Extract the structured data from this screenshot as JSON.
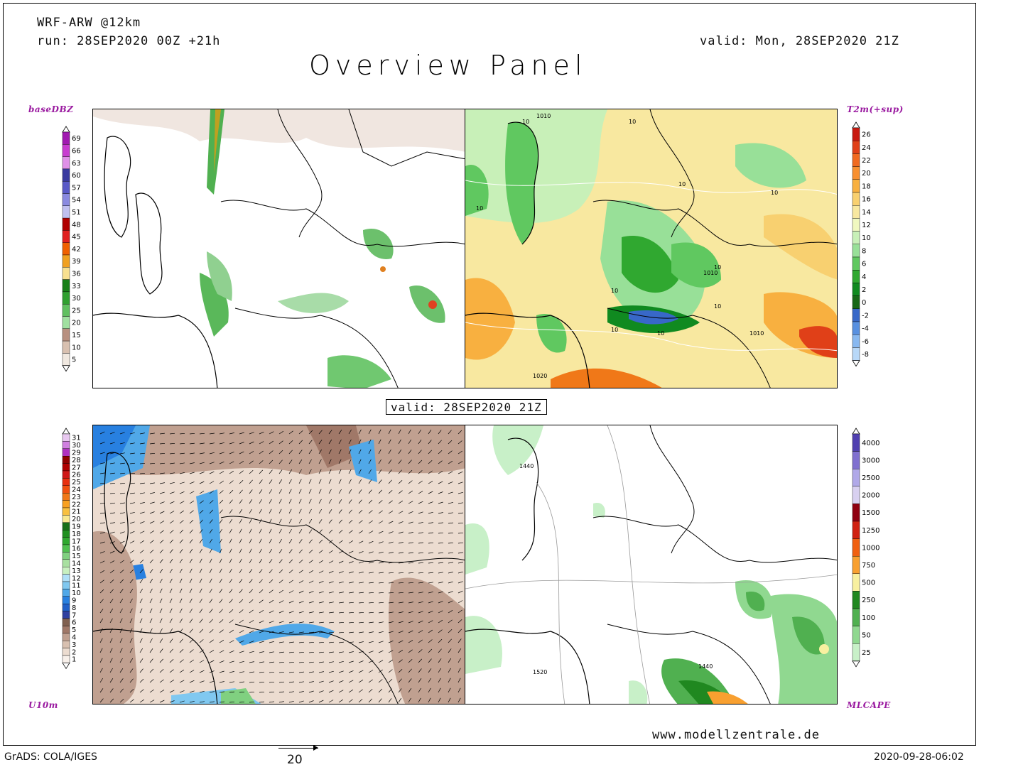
{
  "header": {
    "model": "WRF-ARW @12km",
    "run": "run: 28SEP2020 00Z +21h",
    "valid": "valid: Mon, 28SEP2020 21Z",
    "title": "Overview Panel"
  },
  "panels": {
    "top_left": {
      "label": "baseDBZ",
      "levels": [
        "69",
        "66",
        "63",
        "60",
        "57",
        "54",
        "51",
        "48",
        "45",
        "42",
        "39",
        "36",
        "33",
        "30",
        "25",
        "20",
        "15",
        "10",
        "5"
      ],
      "colors": [
        "#a01ab0",
        "#c83cd0",
        "#e090e8",
        "#3a3aa0",
        "#5a5ac8",
        "#8a8ae0",
        "#c0c0f0",
        "#b00000",
        "#e02020",
        "#f06000",
        "#f0a020",
        "#f8e090",
        "#188018",
        "#30a030",
        "#60c060",
        "#a0e0a0",
        "#b89080",
        "#d8c0b0",
        "#f0e8e0"
      ]
    },
    "top_right": {
      "label": "T2m(+sup)",
      "levels": [
        "26",
        "24",
        "22",
        "20",
        "18",
        "16",
        "14",
        "12",
        "10",
        "8",
        "6",
        "4",
        "2",
        "0",
        "-2",
        "-4",
        "-6",
        "-8"
      ],
      "colors": [
        "#c81a10",
        "#e04018",
        "#f06a20",
        "#f89030",
        "#f8b040",
        "#f8d070",
        "#f8e8a0",
        "#f0f8c0",
        "#c8f0b8",
        "#98e098",
        "#60c860",
        "#30a830",
        "#108a20",
        "#186818",
        "#3868c8",
        "#5890e0",
        "#88b8f0",
        "#b8d8f8"
      ],
      "isobar_labels": [
        "1010",
        "10",
        "10",
        "10",
        "10",
        "10",
        "1010",
        "10",
        "1010",
        "1020",
        "10",
        "10",
        "10",
        "10"
      ]
    },
    "bottom_left": {
      "label": "U10m",
      "levels": [
        "31",
        "30",
        "29",
        "28",
        "27",
        "26",
        "25",
        "24",
        "23",
        "22",
        "21",
        "20",
        "19",
        "18",
        "17",
        "16",
        "15",
        "14",
        "13",
        "12",
        "11",
        "10",
        "9",
        "8",
        "7",
        "6",
        "5",
        "4",
        "3",
        "2",
        "1"
      ],
      "colors": [
        "#e8c8f0",
        "#d080e0",
        "#b030c0",
        "#900000",
        "#b00000",
        "#d01818",
        "#e83010",
        "#f05010",
        "#f07818",
        "#f8a020",
        "#f8c040",
        "#f8e890",
        "#187018",
        "#209020",
        "#30a830",
        "#50c050",
        "#80d080",
        "#a8e0a0",
        "#c8f0c0",
        "#b0e0f8",
        "#80c8f0",
        "#50a8e8",
        "#2880e0",
        "#2060c8",
        "#3040a0",
        "#806050",
        "#a07868",
        "#c0a090",
        "#d8c0b0",
        "#ecdcd0",
        "#f8f0ea"
      ]
    },
    "bottom_right": {
      "label": "MLCAPE",
      "levels": [
        "4000",
        "3000",
        "2500",
        "2000",
        "1500",
        "1250",
        "1000",
        "750",
        "500",
        "250",
        "100",
        "50",
        "25"
      ],
      "colors": [
        "#5040b0",
        "#8070d0",
        "#b0a8e8",
        "#d8d0f0",
        "#900010",
        "#d02010",
        "#f06010",
        "#f8a030",
        "#f8f0a0",
        "#208820",
        "#50b050",
        "#90d890",
        "#c8f0c8"
      ],
      "height_labels": [
        "1440",
        "1440",
        "1520"
      ]
    }
  },
  "valid_box": "valid: 28SEP2020 21Z",
  "footer": {
    "url": "www.modellzentrale.de",
    "grads": "GrADS: COLA/IGES",
    "vector_scale": "20",
    "timestamp": "2020-09-28-06:02"
  }
}
